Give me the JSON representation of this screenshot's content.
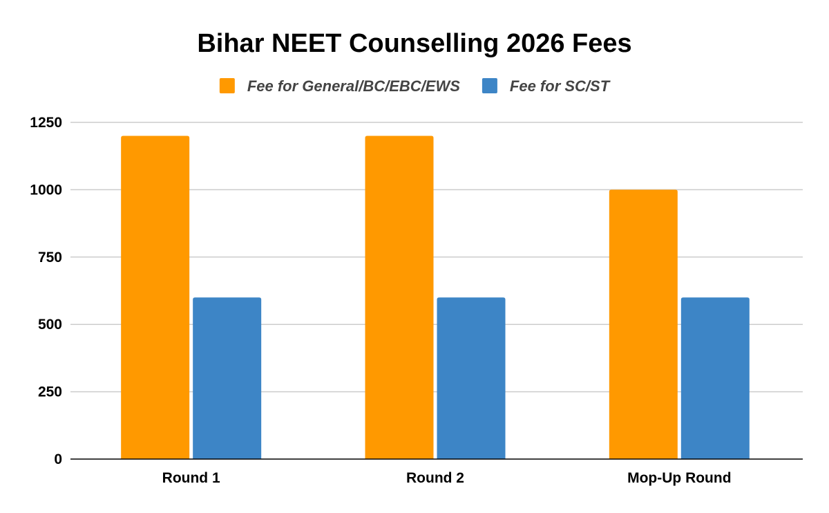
{
  "chart_data": {
    "type": "bar",
    "title": "Bihar NEET Counselling 2026 Fees",
    "categories": [
      "Round 1",
      "Round 2",
      "Mop-Up Round"
    ],
    "series": [
      {
        "name": "Fee for General/BC/EBC/EWS",
        "color": "#ff9900",
        "values": [
          1200,
          1200,
          1000
        ]
      },
      {
        "name": "Fee for SC/ST",
        "color": "#3d85c6",
        "values": [
          600,
          600,
          600
        ]
      }
    ],
    "ylim": [
      0,
      1250
    ],
    "yticks": [
      "0",
      "250",
      "500",
      "750",
      "1000",
      "1250"
    ],
    "grid": true,
    "legend": "top"
  }
}
